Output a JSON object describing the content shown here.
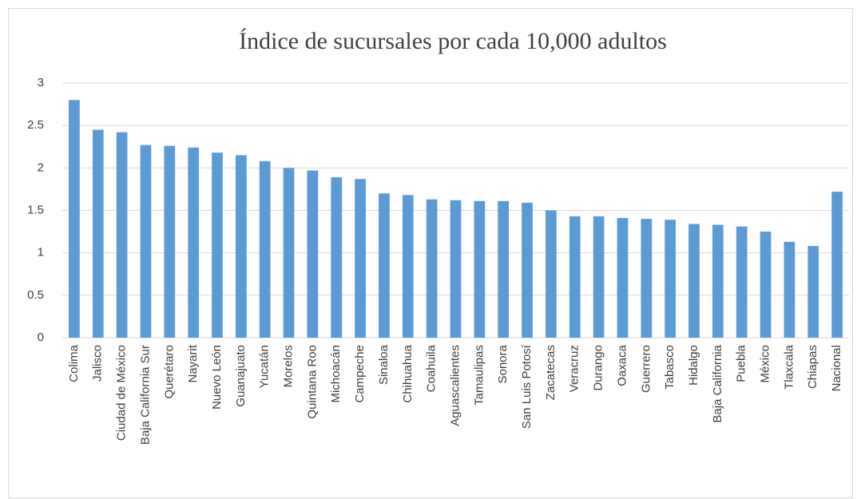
{
  "chart_data": {
    "type": "bar",
    "title": "Índice de sucursales por cada 10,000 adultos",
    "categories": [
      "Colima",
      "Jalisco",
      "Ciudad de México",
      "Baja California Sur",
      "Querétaro",
      "Nayarit",
      "Nuevo León",
      "Guanajuato",
      "Yucatán",
      "Morelos",
      "Quintana Roo",
      "Michoacán",
      "Campeche",
      "Sinaloa",
      "Chihuahua",
      "Coahuila",
      "Aguascalientes",
      "Tamaulipas",
      "Sonora",
      "San Luis Potosí",
      "Zacatecas",
      "Veracruz",
      "Durango",
      "Oaxaca",
      "Guerrero",
      "Tabasco",
      "Hidalgo",
      "Baja California",
      "Puebla",
      "México",
      "Tlaxcala",
      "Chiapas",
      "Nacional"
    ],
    "values": [
      2.8,
      2.45,
      2.42,
      2.27,
      2.26,
      2.24,
      2.18,
      2.15,
      2.08,
      2.0,
      1.97,
      1.89,
      1.87,
      1.7,
      1.68,
      1.63,
      1.62,
      1.61,
      1.61,
      1.59,
      1.5,
      1.43,
      1.43,
      1.41,
      1.4,
      1.39,
      1.34,
      1.33,
      1.31,
      1.25,
      1.13,
      1.08,
      1.72
    ],
    "color": "#5b9bd5",
    "ylim": [
      0,
      3
    ],
    "yticks": [
      0,
      0.5,
      1,
      1.5,
      2,
      2.5,
      3
    ],
    "grid": true
  }
}
